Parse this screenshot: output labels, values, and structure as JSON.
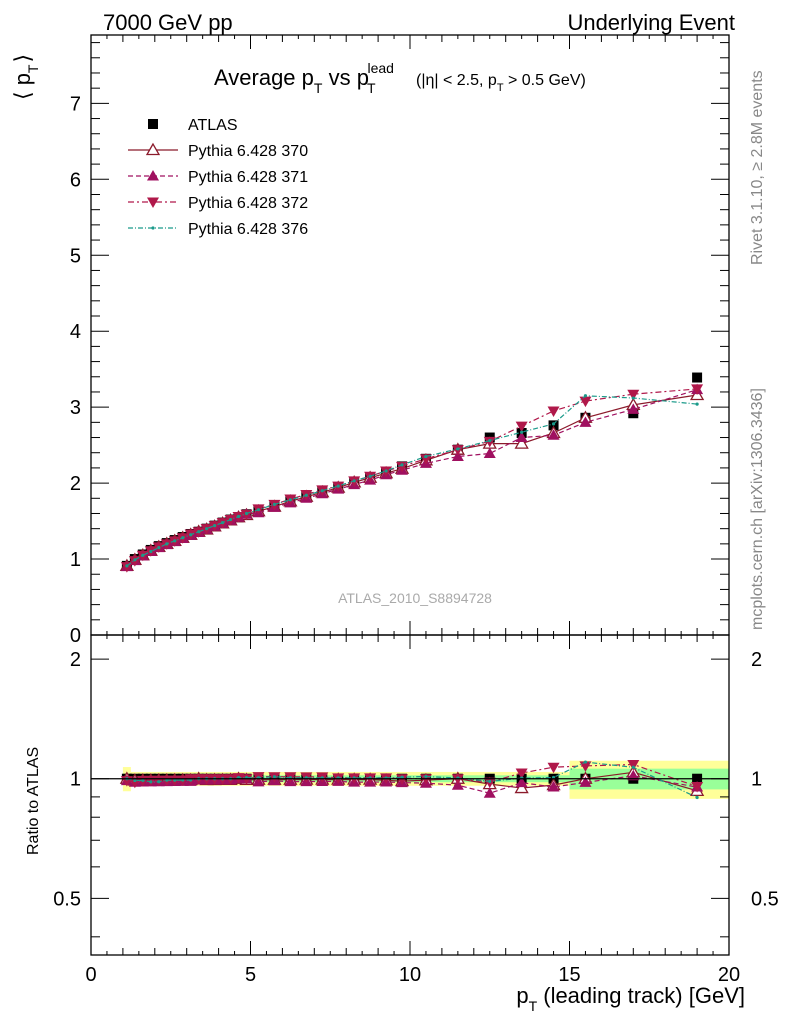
{
  "header": {
    "left": "7000 GeV pp",
    "right": "Underlying Event",
    "title_main": "Average p",
    "title_sub_t": "T",
    "title_vs": " vs p",
    "title_sup_lead": "lead",
    "title_cuts": "(|η| < 2.5, p",
    "title_cuts2": " > 0.5 GeV)"
  },
  "side": {
    "rivet": "Rivet 3.1.10, ≥ 2.8M events",
    "mcplots": "mcplots.cern.ch [arXiv:1306.3436]"
  },
  "watermark": "ATLAS_2010_S8894728",
  "axes": {
    "ylabel_top": "⟨ p",
    "ylabel_top_sub": "T",
    "ylabel_top_close": "⟩",
    "ylabel_bottom": "Ratio to ATLAS",
    "xlabel": "p",
    "xlabel_sub": "T",
    "xlabel_rest": " (leading track) [GeV]",
    "xticks": [
      "0",
      "5",
      "10",
      "15",
      "20"
    ],
    "yticks_top": [
      "0",
      "1",
      "2",
      "3",
      "4",
      "5",
      "6",
      "7"
    ],
    "yticks_bottom": [
      "0.5",
      "1",
      "2"
    ]
  },
  "colors": {
    "atlas": "#000000",
    "p370": "#8b1a2b",
    "p371": "#a01060",
    "p372": "#b0184a",
    "p376": "#1a9a8a",
    "band_yellow": "#ffff99",
    "band_green": "#99ff99"
  },
  "chart_data": {
    "type": "scatter",
    "xlim": [
      0,
      20
    ],
    "ylim_top": [
      0,
      7.9
    ],
    "ylim_bottom": [
      0.36,
      2.3
    ],
    "x": [
      1.125,
      1.375,
      1.625,
      1.875,
      2.125,
      2.375,
      2.625,
      2.875,
      3.125,
      3.375,
      3.625,
      3.875,
      4.125,
      4.375,
      4.625,
      4.875,
      5.25,
      5.75,
      6.25,
      6.75,
      7.25,
      7.75,
      8.25,
      8.75,
      9.25,
      9.75,
      10.5,
      11.5,
      12.5,
      13.5,
      14.5,
      15.5,
      17.0,
      19.0
    ],
    "series": [
      {
        "name": "ATLAS",
        "marker": "square",
        "values": [
          0.91,
          1.0,
          1.06,
          1.12,
          1.17,
          1.21,
          1.25,
          1.29,
          1.33,
          1.36,
          1.4,
          1.44,
          1.48,
          1.52,
          1.55,
          1.59,
          1.64,
          1.7,
          1.77,
          1.83,
          1.89,
          1.95,
          2.02,
          2.08,
          2.15,
          2.22,
          2.32,
          2.44,
          2.6,
          2.66,
          2.76,
          2.86,
          2.92,
          3.39
        ]
      },
      {
        "name": "Pythia 6.428 370",
        "marker": "triangle-up-open",
        "values": [
          0.91,
          0.99,
          1.05,
          1.11,
          1.16,
          1.2,
          1.24,
          1.28,
          1.32,
          1.36,
          1.39,
          1.43,
          1.47,
          1.51,
          1.55,
          1.58,
          1.63,
          1.69,
          1.76,
          1.82,
          1.88,
          1.94,
          2.01,
          2.07,
          2.13,
          2.19,
          2.3,
          2.44,
          2.52,
          2.52,
          2.66,
          2.86,
          3.03,
          3.16
        ]
      },
      {
        "name": "Pythia 6.428 371",
        "marker": "triangle-up",
        "values": [
          0.9,
          0.98,
          1.04,
          1.1,
          1.15,
          1.19,
          1.23,
          1.27,
          1.31,
          1.35,
          1.39,
          1.43,
          1.47,
          1.51,
          1.55,
          1.59,
          1.61,
          1.68,
          1.74,
          1.8,
          1.86,
          1.92,
          1.98,
          2.04,
          2.11,
          2.17,
          2.26,
          2.35,
          2.39,
          2.6,
          2.63,
          2.8,
          2.97,
          3.23
        ]
      },
      {
        "name": "Pythia 6.428 372",
        "marker": "triangle-down",
        "values": [
          0.9,
          0.98,
          1.05,
          1.11,
          1.16,
          1.2,
          1.24,
          1.28,
          1.33,
          1.36,
          1.4,
          1.44,
          1.48,
          1.52,
          1.56,
          1.59,
          1.66,
          1.72,
          1.79,
          1.85,
          1.91,
          1.96,
          2.03,
          2.09,
          2.16,
          2.22,
          2.32,
          2.44,
          2.55,
          2.75,
          2.95,
          3.08,
          3.17,
          3.24
        ]
      },
      {
        "name": "Pythia 6.428 376",
        "marker": "dot",
        "values": [
          0.91,
          0.99,
          1.05,
          1.1,
          1.15,
          1.2,
          1.24,
          1.28,
          1.32,
          1.36,
          1.4,
          1.44,
          1.48,
          1.52,
          1.56,
          1.6,
          1.65,
          1.72,
          1.78,
          1.84,
          1.9,
          1.96,
          2.03,
          2.09,
          2.16,
          2.24,
          2.35,
          2.45,
          2.56,
          2.67,
          2.78,
          3.15,
          3.12,
          3.04
        ]
      }
    ],
    "ratio_band": {
      "x_edges": [
        1.0,
        1.25,
        15.0,
        20.0
      ],
      "yellow_half": [
        0.07,
        0.04,
        0.11
      ],
      "green_half": [
        0.03,
        0.02,
        0.06
      ]
    }
  }
}
